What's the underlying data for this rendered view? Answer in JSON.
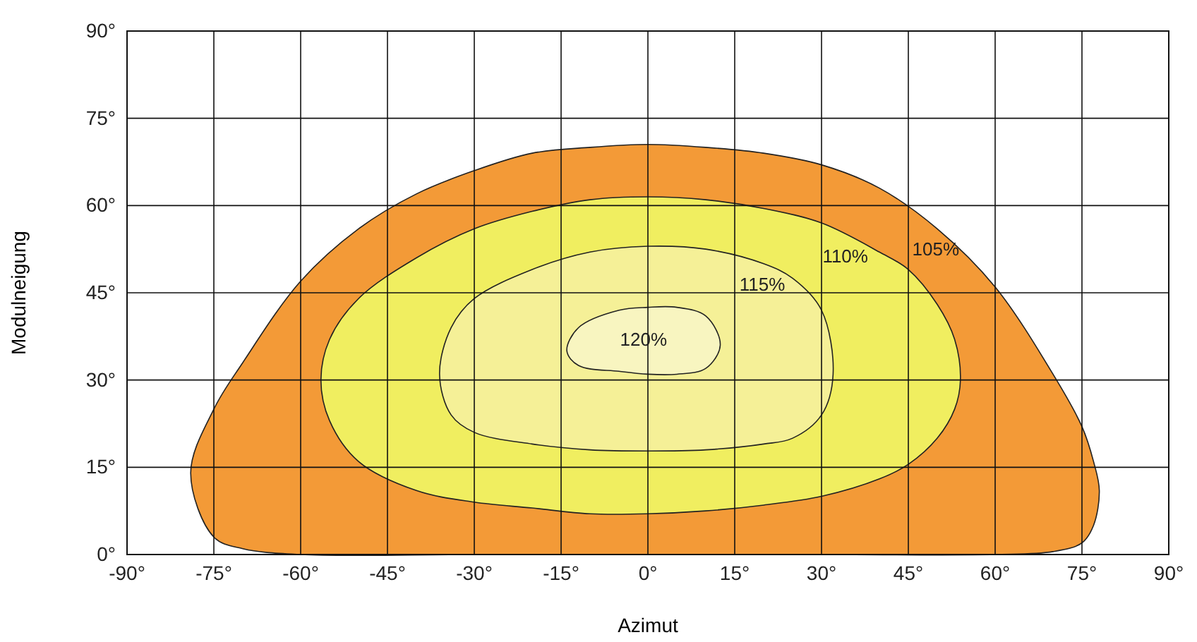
{
  "chart_data": {
    "type": "area",
    "xlabel": "Azimut",
    "ylabel": "Modulneigung",
    "xlim": [
      -90,
      90
    ],
    "ylim": [
      0,
      90
    ],
    "xticks": [
      {
        "value": -90,
        "label": "-90°"
      },
      {
        "value": -75,
        "label": "-75°"
      },
      {
        "value": -60,
        "label": "-60°"
      },
      {
        "value": -45,
        "label": "-45°"
      },
      {
        "value": -30,
        "label": "-30°"
      },
      {
        "value": -15,
        "label": "-15°"
      },
      {
        "value": 0,
        "label": "0°"
      },
      {
        "value": 15,
        "label": "15°"
      },
      {
        "value": 30,
        "label": "30°"
      },
      {
        "value": 45,
        "label": "45°"
      },
      {
        "value": 60,
        "label": "60°"
      },
      {
        "value": 75,
        "label": "75°"
      },
      {
        "value": 90,
        "label": "90°"
      }
    ],
    "yticks": [
      {
        "value": 0,
        "label": "0°"
      },
      {
        "value": 15,
        "label": "15°"
      },
      {
        "value": 30,
        "label": "30°"
      },
      {
        "value": 45,
        "label": "45°"
      },
      {
        "value": 60,
        "label": "60°"
      },
      {
        "value": 75,
        "label": "75°"
      },
      {
        "value": 90,
        "label": "90°"
      }
    ],
    "grid": true,
    "series": [
      {
        "name": "105%",
        "color": "#f39a37",
        "x": [
          -79,
          -75,
          -70,
          -60,
          -50,
          -40,
          -30,
          -20,
          -10,
          0,
          10,
          20,
          30,
          40,
          50,
          60,
          70,
          75,
          77,
          78,
          77,
          75,
          70,
          60,
          30,
          0,
          -30,
          -60,
          -70,
          -75
        ],
        "values": [
          14,
          25,
          33,
          47,
          56,
          62,
          66,
          69,
          70,
          70.5,
          70,
          69,
          67,
          63,
          56,
          46,
          31,
          22,
          16,
          11,
          5,
          2,
          0.5,
          0,
          0,
          0,
          0,
          0,
          1,
          3
        ]
      },
      {
        "name": "110%",
        "color": "#f0ee60",
        "x": [
          -56.5,
          -55,
          -50,
          -40,
          -30,
          -20,
          -10,
          0,
          10,
          20,
          30,
          40,
          45,
          50,
          53,
          54,
          53,
          50,
          45,
          40,
          30,
          20,
          10,
          0,
          -10,
          -20,
          -30,
          -40,
          -50,
          -55
        ],
        "values": [
          30,
          37,
          44,
          51,
          56,
          59,
          61,
          61.5,
          61,
          59.5,
          57,
          52,
          49,
          43,
          37,
          30,
          25,
          20,
          15.5,
          13,
          10,
          8.5,
          7.5,
          7,
          7,
          8,
          9,
          11,
          16,
          23
        ]
      },
      {
        "name": "115%",
        "color": "#f5f097",
        "x": [
          -36,
          -34,
          -30,
          -20,
          -10,
          0,
          10,
          20,
          25,
          30,
          32,
          30,
          25,
          20,
          10,
          0,
          -10,
          -20,
          -30,
          -34
        ],
        "values": [
          31,
          39,
          44,
          49,
          52,
          53,
          52.5,
          50,
          47.5,
          42,
          31,
          24,
          20,
          19,
          18,
          17.8,
          18,
          19,
          21,
          24
        ]
      },
      {
        "name": "120%",
        "color": "#f8f5c0",
        "x": [
          -14,
          -12,
          -5,
          0,
          5,
          10,
          12.5,
          10,
          5,
          0,
          -5,
          -12
        ],
        "values": [
          35,
          39,
          42,
          42.5,
          42.5,
          41,
          36,
          32,
          31,
          31,
          31.5,
          32.5
        ]
      }
    ]
  }
}
